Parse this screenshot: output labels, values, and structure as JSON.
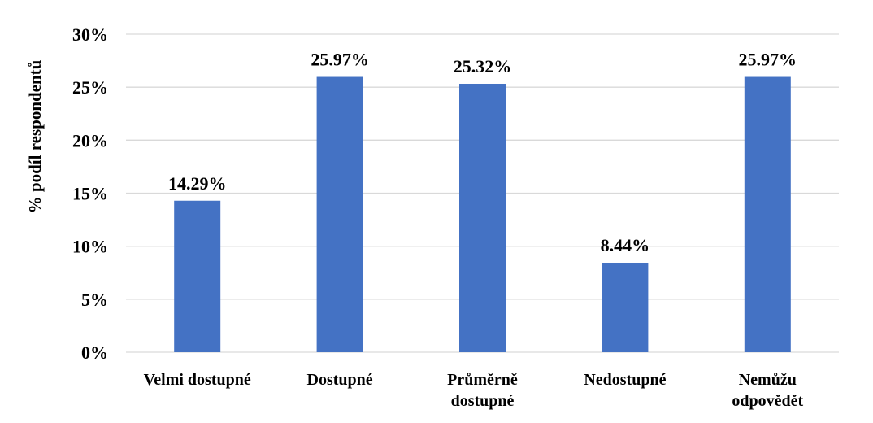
{
  "chart_data": {
    "type": "bar",
    "categories": [
      [
        "Velmi dostupné"
      ],
      [
        "Dostupné"
      ],
      [
        "Průměrně",
        "dostupné"
      ],
      [
        "Nedostupné"
      ],
      [
        "Nemůžu",
        "odpovědět"
      ]
    ],
    "values": [
      14.29,
      25.97,
      25.32,
      8.44,
      25.97
    ],
    "data_labels": [
      "14.29%",
      "25.97%",
      "25.32%",
      "8.44%",
      "25.97%"
    ],
    "title": "",
    "xlabel": "",
    "ylabel": "% podíl respondentů",
    "ylim": [
      0,
      30
    ],
    "yticks": [
      "0%",
      "5%",
      "10%",
      "15%",
      "20%",
      "25%",
      "30%"
    ],
    "grid": true,
    "legend": "none",
    "bar_color": "#4472c4",
    "grid_color": "#d9d9d9"
  }
}
